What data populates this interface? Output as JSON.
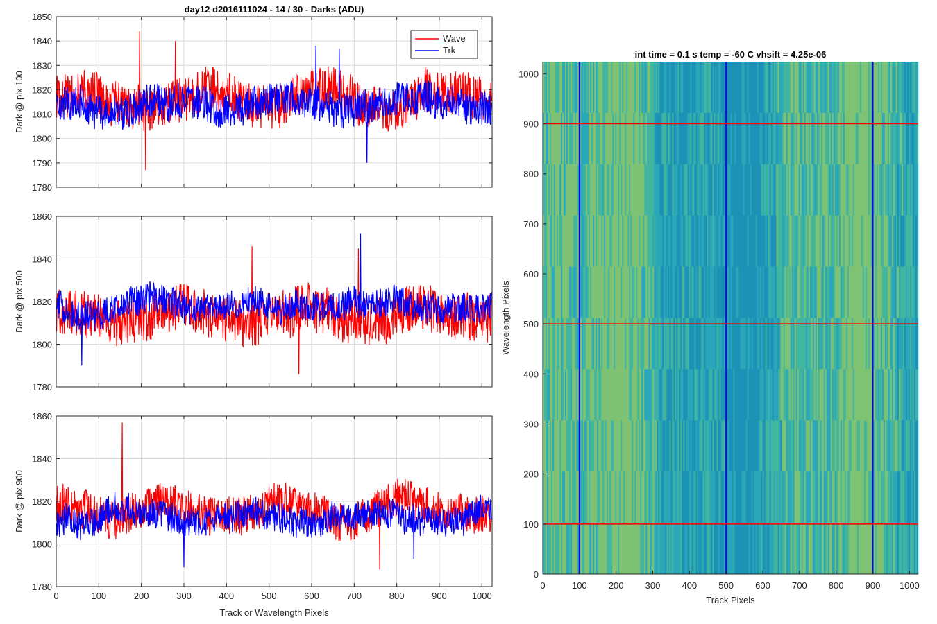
{
  "chart_data": [
    {
      "type": "line",
      "title": "day12 d2016111024 - 14 / 30 - Darks (ADU)",
      "ylabel": "Dark @ pix 100",
      "xlabel": "",
      "xlim": [
        0,
        1024
      ],
      "ylim": [
        1780,
        1850
      ],
      "xticks": [
        0,
        100,
        200,
        300,
        400,
        500,
        600,
        700,
        800,
        900,
        1000
      ],
      "yticks": [
        1780,
        1790,
        1800,
        1810,
        1820,
        1830,
        1840,
        1850
      ],
      "grid": true,
      "legend": {
        "position": "top-right",
        "entries": [
          "Wave",
          "Trk"
        ]
      },
      "series": [
        {
          "name": "Wave",
          "color": "#ff0000",
          "mean": 1816,
          "amp": 9,
          "peaks": [
            [
              196,
              1844
            ],
            [
              210,
              1787
            ],
            [
              280,
              1840
            ]
          ]
        },
        {
          "name": "Trk",
          "color": "#0000ff",
          "mean": 1814,
          "amp": 7,
          "peaks": [
            [
              665,
              1837
            ],
            [
              730,
              1790
            ],
            [
              610,
              1838
            ]
          ]
        }
      ]
    },
    {
      "type": "line",
      "title": "",
      "ylabel": "Dark @ pix 500",
      "xlabel": "",
      "xlim": [
        0,
        1024
      ],
      "ylim": [
        1780,
        1860
      ],
      "xticks": [
        0,
        100,
        200,
        300,
        400,
        500,
        600,
        700,
        800,
        900,
        1000
      ],
      "yticks": [
        1780,
        1800,
        1820,
        1840,
        1860
      ],
      "grid": true,
      "series": [
        {
          "name": "Wave",
          "color": "#ff0000",
          "mean": 1813,
          "amp": 11,
          "peaks": [
            [
              460,
              1846
            ],
            [
              570,
              1786
            ],
            [
              710,
              1845
            ]
          ]
        },
        {
          "name": "Trk",
          "color": "#0000ff",
          "mean": 1818,
          "amp": 7,
          "peaks": [
            [
              715,
              1852
            ],
            [
              60,
              1790
            ]
          ]
        }
      ]
    },
    {
      "type": "line",
      "title": "",
      "ylabel": "Dark @ pix 900",
      "xlabel": "Track or Wavelength Pixels",
      "xlim": [
        0,
        1024
      ],
      "ylim": [
        1780,
        1860
      ],
      "xticks": [
        0,
        100,
        200,
        300,
        400,
        500,
        600,
        700,
        800,
        900,
        1000
      ],
      "yticks": [
        1780,
        1800,
        1820,
        1840,
        1860
      ],
      "grid": true,
      "series": [
        {
          "name": "Wave",
          "color": "#ff0000",
          "mean": 1816,
          "amp": 9,
          "peaks": [
            [
              155,
              1857
            ],
            [
              760,
              1788
            ]
          ]
        },
        {
          "name": "Trk",
          "color": "#0000ff",
          "mean": 1812,
          "amp": 7,
          "peaks": [
            [
              300,
              1789
            ],
            [
              840,
              1793
            ]
          ]
        }
      ]
    },
    {
      "type": "heatmap",
      "title": "int time = 0.1 s   temp = -60 C   vhsift = 4.25e-06",
      "xlabel": "Track Pixels",
      "ylabel": "Wavelength Pixels",
      "xlim": [
        0,
        1024
      ],
      "ylim": [
        0,
        1024
      ],
      "xticks": [
        0,
        100,
        200,
        300,
        400,
        500,
        600,
        700,
        800,
        900,
        1000
      ],
      "yticks": [
        0,
        100,
        200,
        300,
        400,
        500,
        600,
        700,
        800,
        900,
        1000
      ],
      "colormap": [
        "#1a8fb5",
        "#2aa7b8",
        "#45b79a",
        "#8cc56a"
      ],
      "vertical_markers": {
        "color": "#0000ff",
        "x": [
          100,
          500,
          900
        ]
      },
      "horizontal_markers": {
        "color": "#ff0000",
        "y": [
          100,
          500,
          900
        ]
      }
    }
  ]
}
